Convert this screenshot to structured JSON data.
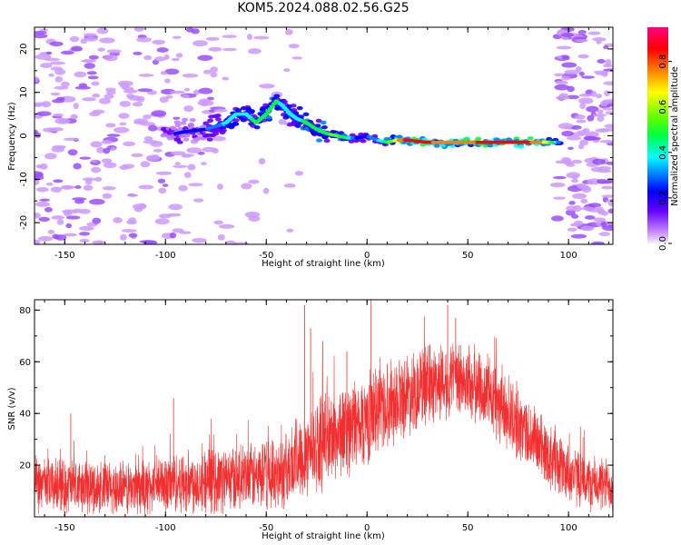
{
  "title": "KOM5.2024.088.02.56.G25",
  "chart_data": [
    {
      "type": "heatmap",
      "xlabel": "Height of straight line (km)",
      "ylabel": "Frequency (Hz)",
      "xlim": [
        -165,
        122
      ],
      "ylim": [
        -25,
        25
      ],
      "xticks": [
        -150,
        -100,
        -50,
        0,
        50,
        100
      ],
      "yticks": [
        -20,
        -10,
        0,
        10,
        20
      ],
      "ridge": {
        "x": [
          -100,
          -90,
          -80,
          -70,
          -65,
          -60,
          -55,
          -50,
          -45,
          -42,
          -38,
          -35,
          -30,
          -25,
          -20,
          -15,
          -10,
          -5,
          0,
          5,
          10,
          15,
          20,
          30,
          40,
          50,
          60,
          70,
          80,
          90,
          95
        ],
        "y": [
          0,
          1,
          1.5,
          3,
          5,
          5,
          3,
          5,
          8,
          7,
          5,
          4,
          3,
          1.5,
          0.5,
          0,
          -0.5,
          -0.5,
          0,
          -1,
          -1.5,
          -1,
          -1,
          -1.5,
          -1.5,
          -1.5,
          -1.5,
          -1.5,
          -1.5,
          -1.5,
          -1.5
        ],
        "amplitude": [
          0.25,
          0.25,
          0.3,
          0.4,
          0.45,
          0.45,
          0.5,
          0.5,
          0.5,
          0.45,
          0.45,
          0.45,
          0.5,
          0.5,
          0.55,
          0.6,
          0.5,
          0.3,
          0.3,
          0.35,
          0.55,
          0.7,
          0.9,
          0.85,
          0.75,
          0.8,
          0.85,
          0.85,
          0.85,
          0.7,
          0.35
        ]
      },
      "colorbar": {
        "label": "Normalized spectral amplitude",
        "range": [
          0,
          0.95
        ],
        "ticks": [
          0.0,
          0.2,
          0.4,
          0.6,
          0.8
        ],
        "colormap": [
          "#f7f0ff",
          "#c080ff",
          "#6600ff",
          "#0000ff",
          "#0080ff",
          "#00ffff",
          "#00ff40",
          "#60ff00",
          "#ffff00",
          "#ff8000",
          "#ff0000",
          "#ff0080"
        ]
      }
    },
    {
      "type": "line",
      "xlabel": "Height of straight line (km)",
      "ylabel": "SNR (v/v)",
      "xlim": [
        -165,
        122
      ],
      "ylim": [
        0,
        84
      ],
      "xticks": [
        -150,
        -100,
        -50,
        0,
        50,
        100
      ],
      "yticks": [
        20,
        40,
        60,
        80
      ],
      "color": "#f03030",
      "envelope": {
        "x": [
          -165,
          -150,
          -130,
          -110,
          -100,
          -80,
          -60,
          -50,
          -40,
          -35,
          -30,
          -20,
          -10,
          0,
          10,
          20,
          30,
          40,
          50,
          60,
          70,
          80,
          90,
          100,
          110,
          122
        ],
        "mean": [
          12,
          12,
          11,
          11,
          13,
          14,
          15,
          16,
          18,
          22,
          26,
          30,
          34,
          38,
          44,
          48,
          51,
          53,
          52,
          48,
          40,
          32,
          24,
          17,
          13,
          12
        ],
        "spread": [
          10,
          10,
          10,
          10,
          11,
          12,
          12,
          13,
          14,
          16,
          17,
          17,
          17,
          17,
          16,
          15,
          15,
          14,
          14,
          14,
          14,
          13,
          12,
          11,
          10,
          10
        ]
      },
      "spikes": [
        {
          "x": -31,
          "y": 82
        },
        {
          "x": 2,
          "y": 84
        },
        {
          "x": -28,
          "y": 73
        },
        {
          "x": -96,
          "y": 46
        },
        {
          "x": -22,
          "y": 68
        },
        {
          "x": 40,
          "y": 82
        },
        {
          "x": 44,
          "y": 77
        },
        {
          "x": -10,
          "y": 64
        },
        {
          "x": -147,
          "y": 40
        }
      ]
    }
  ]
}
